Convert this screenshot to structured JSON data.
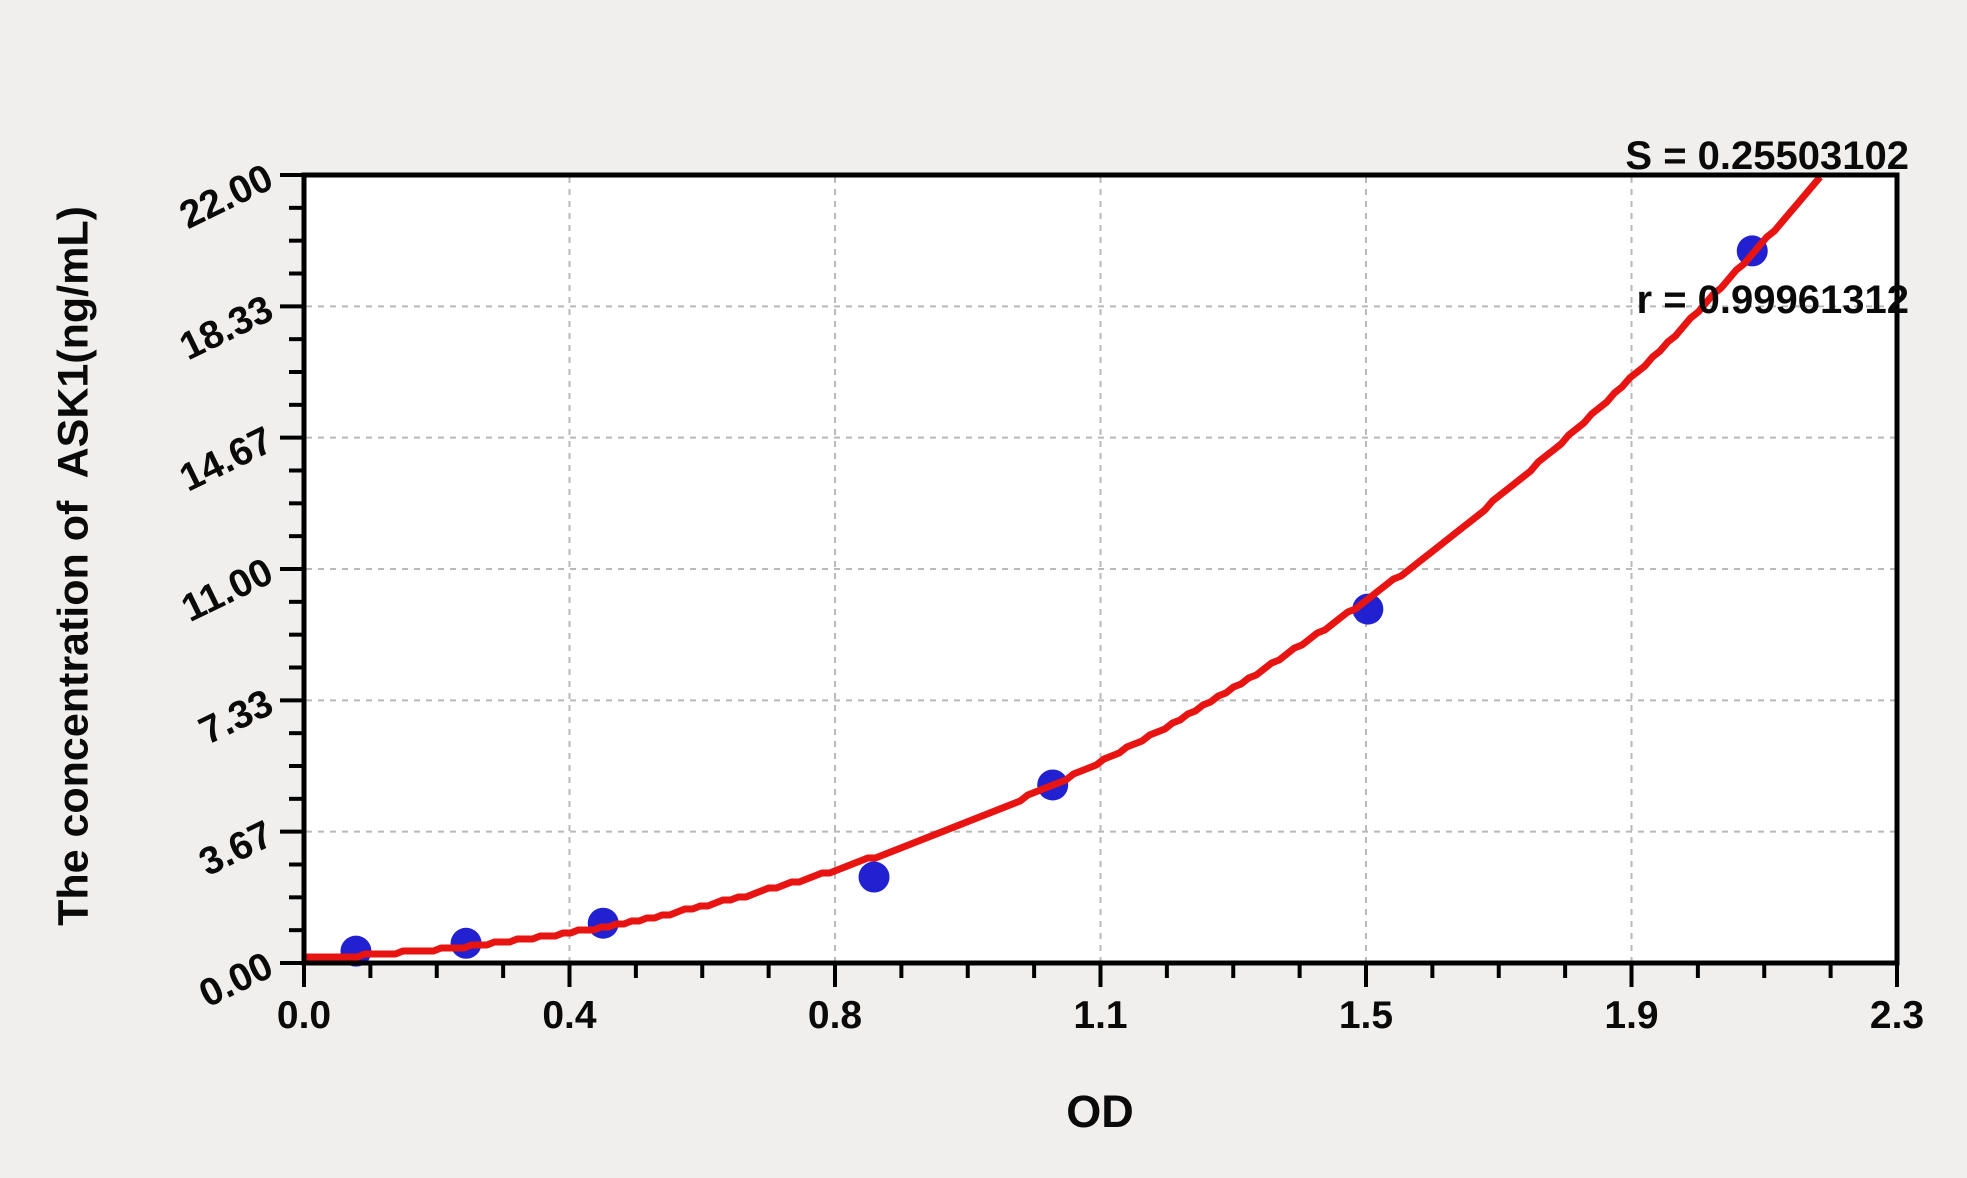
{
  "annotations": {
    "s_line": "S = 0.25503102",
    "r_line": "r = 0.99961312"
  },
  "chart_data": {
    "type": "scatter",
    "title": "",
    "xlabel": "OD",
    "ylabel": "The concentration of  ASK1(ng/mL)",
    "xlim": [
      0,
      2.3
    ],
    "ylim": [
      0,
      22
    ],
    "x_major_tick_values": [
      0,
      0.3833,
      0.7667,
      1.15,
      1.5333,
      1.9167,
      2.3
    ],
    "x_major_ticklabels": [
      "0.0",
      "0.4",
      "0.8",
      "1.1",
      "1.5",
      "1.9",
      "2.3"
    ],
    "y_major_tick_values": [
      0,
      3.6667,
      7.3333,
      11,
      14.6667,
      18.3333,
      22
    ],
    "y_major_ticklabels": [
      "0.00",
      "3.67",
      "7.33",
      "11.00",
      "14.67",
      "18.33",
      "22.00"
    ],
    "minor_ticks_per_major_interval": 3,
    "grid": "dashed gray lines at interior major ticks, plot background white",
    "legend": "none",
    "points": [
      {
        "od": 0.075,
        "conc": 0.33
      },
      {
        "od": 0.234,
        "conc": 0.55
      },
      {
        "od": 0.432,
        "conc": 1.11
      },
      {
        "od": 0.823,
        "conc": 2.4
      },
      {
        "od": 1.081,
        "conc": 4.97
      },
      {
        "od": 1.536,
        "conc": 9.88
      },
      {
        "od": 2.091,
        "conc": 19.88
      }
    ],
    "fit_curve": {
      "model": "cubic: conc = c0 + c1*OD + c2*OD^2 + c3*OD^3",
      "coefficients": [
        0.14,
        0.6678,
        2.816,
        0.6499
      ],
      "od_range": [
        0,
        2.195
      ],
      "S": "0.25503102",
      "r": "0.99961312"
    },
    "colors": {
      "points": "#2121d2",
      "curve": "#e81412",
      "grid": "#b9b9b9",
      "axis": "#000000",
      "plot_bg": "#ffffff",
      "page_bg": "#f0efed"
    }
  }
}
